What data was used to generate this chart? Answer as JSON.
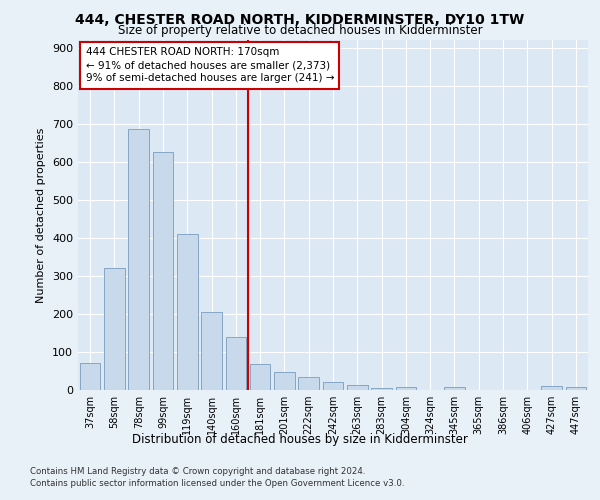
{
  "title": "444, CHESTER ROAD NORTH, KIDDERMINSTER, DY10 1TW",
  "subtitle": "Size of property relative to detached houses in Kidderminster",
  "xlabel": "Distribution of detached houses by size in Kidderminster",
  "ylabel": "Number of detached properties",
  "categories": [
    "37sqm",
    "58sqm",
    "78sqm",
    "99sqm",
    "119sqm",
    "140sqm",
    "160sqm",
    "181sqm",
    "201sqm",
    "222sqm",
    "242sqm",
    "263sqm",
    "283sqm",
    "304sqm",
    "324sqm",
    "345sqm",
    "365sqm",
    "386sqm",
    "406sqm",
    "427sqm",
    "447sqm"
  ],
  "values": [
    72,
    320,
    685,
    625,
    410,
    205,
    140,
    68,
    47,
    33,
    20,
    12,
    5,
    8,
    0,
    8,
    0,
    0,
    0,
    10,
    8
  ],
  "bar_color": "#c9d9ec",
  "bar_edge_color": "#7a9cc0",
  "vline_color": "#cc0000",
  "background_color": "#e8f0f8",
  "plot_bg_color": "#dde8f5",
  "grid_color": "#ffffff",
  "annotation_line1": "444 CHESTER ROAD NORTH: 170sqm",
  "annotation_line2": "← 91% of detached houses are smaller (2,373)",
  "annotation_line3": "9% of semi-detached houses are larger (241) →",
  "footer_line1": "Contains HM Land Registry data © Crown copyright and database right 2024.",
  "footer_line2": "Contains public sector information licensed under the Open Government Licence v3.0.",
  "ylim": [
    0,
    920
  ],
  "yticks": [
    0,
    100,
    200,
    300,
    400,
    500,
    600,
    700,
    800,
    900
  ]
}
